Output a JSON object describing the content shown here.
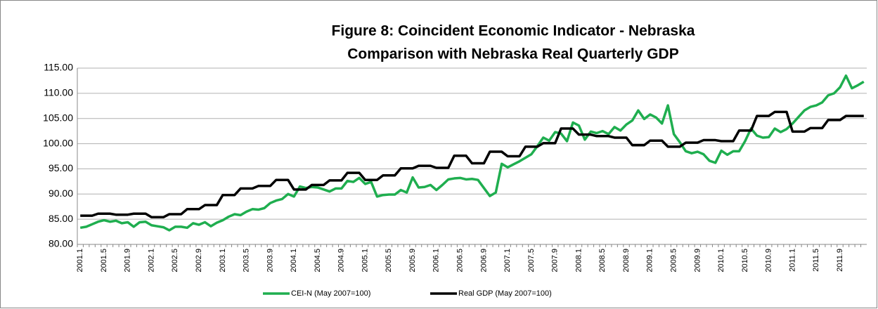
{
  "chart_data": {
    "type": "line",
    "title": [
      "Figure 8: Coincident Economic Indicator - Nebraska",
      "Comparison with Nebraska Real Quarterly GDP"
    ],
    "categories": [
      "2001.1",
      null,
      null,
      null,
      "2001.5",
      null,
      null,
      null,
      "2001.9",
      null,
      null,
      null,
      "2002.1",
      null,
      null,
      null,
      "2002.5",
      null,
      null,
      null,
      "2002.9",
      null,
      null,
      null,
      "2003.1",
      null,
      null,
      null,
      "2003.5",
      null,
      null,
      null,
      "2003.9",
      null,
      null,
      null,
      "2004.1",
      null,
      null,
      null,
      "2004.5",
      null,
      null,
      null,
      "2004.9",
      null,
      null,
      null,
      "2005.1",
      null,
      null,
      null,
      "2005.5",
      null,
      null,
      null,
      "2005.9",
      null,
      null,
      null,
      "2006.1",
      null,
      null,
      null,
      "2006.5",
      null,
      null,
      null,
      "2006.9",
      null,
      null,
      null,
      "2007.1",
      null,
      null,
      null,
      "2007.5",
      null,
      null,
      null,
      "2007.9",
      null,
      null,
      null,
      "2008.1",
      null,
      null,
      null,
      "2008.5",
      null,
      null,
      null,
      "2008.9",
      null,
      null,
      null,
      "2009.1",
      null,
      null,
      null,
      "2009.5",
      null,
      null,
      null,
      "2009.9",
      null,
      null,
      null,
      "2010.1",
      null,
      null,
      null,
      "2010.5",
      null,
      null,
      null,
      "2010.9",
      null,
      null,
      null,
      "2011.1",
      null,
      null,
      null,
      "2011.5",
      null,
      null,
      null,
      "2011.9",
      null,
      null,
      null,
      null
    ],
    "series": [
      {
        "name": "CEI-N (May 2007=100)",
        "color": "#1fae4f",
        "values": [
          83.3,
          83.5,
          84.0,
          84.5,
          84.8,
          84.5,
          84.7,
          84.2,
          84.4,
          83.5,
          84.4,
          84.5,
          83.8,
          83.6,
          83.4,
          82.8,
          83.5,
          83.5,
          83.3,
          84.2,
          83.9,
          84.4,
          83.6,
          84.3,
          84.8,
          85.5,
          86.0,
          85.8,
          86.5,
          87.0,
          86.9,
          87.2,
          88.2,
          88.7,
          89.0,
          90.0,
          89.5,
          91.5,
          91.2,
          91.4,
          91.3,
          90.9,
          90.5,
          91.1,
          91.1,
          92.6,
          92.4,
          93.2,
          92.0,
          92.4,
          89.5,
          89.8,
          89.9,
          89.9,
          90.8,
          90.3,
          93.3,
          91.3,
          91.4,
          91.8,
          90.8,
          91.8,
          92.9,
          93.1,
          93.2,
          92.9,
          93.0,
          92.8,
          91.2,
          89.6,
          90.3,
          96.0,
          95.3,
          95.9,
          96.5,
          97.2,
          97.9,
          99.5,
          101.2,
          100.6,
          102.3,
          102.0,
          100.5,
          104.2,
          103.6,
          100.8,
          102.4,
          102.1,
          102.5,
          101.9,
          103.3,
          102.6,
          103.8,
          104.6,
          106.6,
          104.9,
          105.8,
          105.2,
          104.0,
          107.6,
          101.9,
          100.3,
          98.5,
          98.1,
          98.4,
          97.9,
          96.6,
          96.2,
          98.6,
          97.8,
          98.5,
          98.5,
          100.5,
          103.0,
          101.6,
          101.2,
          101.3,
          103.0,
          102.3,
          102.9,
          104.0,
          105.3,
          106.6,
          107.3,
          107.6,
          108.2,
          109.6,
          110.0,
          111.2,
          113.5,
          111.0,
          111.6,
          112.3
        ]
      },
      {
        "name": "Real GDP (May 2007=100)",
        "color": "#000000",
        "values": [
          85.7,
          85.7,
          85.7,
          86.1,
          86.1,
          86.1,
          85.9,
          85.9,
          85.9,
          86.1,
          86.1,
          86.1,
          85.4,
          85.4,
          85.4,
          86.0,
          86.0,
          86.0,
          87.0,
          87.0,
          87.0,
          87.8,
          87.8,
          87.8,
          89.8,
          89.8,
          89.8,
          91.1,
          91.1,
          91.1,
          91.6,
          91.6,
          91.6,
          92.8,
          92.8,
          92.8,
          90.9,
          90.9,
          90.9,
          91.8,
          91.8,
          91.8,
          92.7,
          92.7,
          92.7,
          94.2,
          94.2,
          94.2,
          92.8,
          92.8,
          92.8,
          93.7,
          93.7,
          93.7,
          95.1,
          95.1,
          95.1,
          95.6,
          95.6,
          95.6,
          95.2,
          95.2,
          95.2,
          97.6,
          97.6,
          97.6,
          96.1,
          96.1,
          96.1,
          98.4,
          98.4,
          98.4,
          97.5,
          97.5,
          97.5,
          99.4,
          99.4,
          99.4,
          100.1,
          100.1,
          100.1,
          103.0,
          103.0,
          103.0,
          101.8,
          101.8,
          101.8,
          101.5,
          101.5,
          101.5,
          101.2,
          101.2,
          101.2,
          99.7,
          99.7,
          99.7,
          100.6,
          100.6,
          100.6,
          99.4,
          99.4,
          99.4,
          100.2,
          100.2,
          100.2,
          100.7,
          100.7,
          100.7,
          100.5,
          100.5,
          100.5,
          102.6,
          102.6,
          102.6,
          105.5,
          105.5,
          105.5,
          106.3,
          106.3,
          106.3,
          102.4,
          102.4,
          102.4,
          103.1,
          103.1,
          103.1,
          104.7,
          104.7,
          104.7,
          105.5,
          105.5,
          105.5,
          105.5
        ]
      }
    ],
    "ylim": [
      80,
      115
    ],
    "yticks": [
      {
        "value": 80,
        "label": "80.00"
      },
      {
        "value": 85,
        "label": "85.00"
      },
      {
        "value": 90,
        "label": "90.00"
      },
      {
        "value": 95,
        "label": "95.00"
      },
      {
        "value": 100,
        "label": "100.00"
      },
      {
        "value": 105,
        "label": "105.00"
      },
      {
        "value": 110,
        "label": "110.00"
      },
      {
        "value": 115,
        "label": "115.00"
      }
    ],
    "grid": true,
    "legend": "bottom"
  }
}
